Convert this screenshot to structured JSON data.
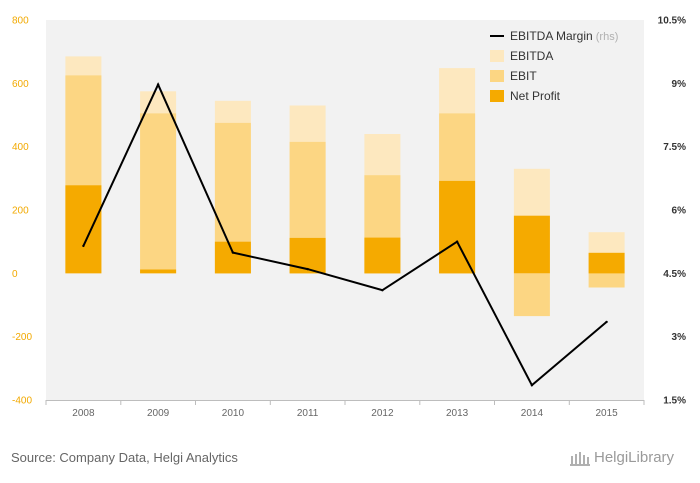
{
  "chart_data": {
    "type": "bar",
    "categories": [
      "2008",
      "2009",
      "2010",
      "2011",
      "2012",
      "2013",
      "2014",
      "2015"
    ],
    "series": [
      {
        "name": "EBITDA",
        "type": "bar",
        "axis": "left",
        "color": "#fde8bf",
        "values": [
          685,
          575,
          545,
          530,
          440,
          648,
          330,
          130
        ]
      },
      {
        "name": "EBIT",
        "type": "bar",
        "axis": "left",
        "color": "#fcd683",
        "values": [
          625,
          505,
          475,
          415,
          310,
          505,
          -135,
          -45
        ]
      },
      {
        "name": "Net Profit",
        "type": "bar",
        "axis": "left",
        "color": "#f5aa00",
        "values": [
          278,
          12,
          100,
          112,
          113,
          292,
          182,
          65
        ]
      },
      {
        "name": "EBITDA Margin",
        "type": "line",
        "axis": "right",
        "color": "#000000",
        "values": [
          5.15,
          8.97,
          4.99,
          4.6,
          4.1,
          5.25,
          1.85,
          3.35
        ]
      }
    ],
    "left_axis": {
      "min": -400,
      "max": 800,
      "ticks": [
        "800",
        "600",
        "400",
        "200",
        "0",
        "-200",
        "-400"
      ],
      "tick_values": [
        800,
        600,
        400,
        200,
        0,
        -200,
        -400
      ]
    },
    "right_axis": {
      "min": 1.5,
      "max": 10.5,
      "ticks": [
        "10.5%",
        "9%",
        "7.5%",
        "6%",
        "4.5%",
        "3%",
        "1.5%"
      ],
      "tick_values": [
        10.5,
        9,
        7.5,
        6,
        4.5,
        3,
        1.5
      ]
    },
    "legend": {
      "placement": "top-right",
      "rhs_suffix": "(rhs)"
    },
    "grid": false
  },
  "footer": {
    "source": "Source: Company Data, Helgi Analytics",
    "logo": "HelgiLibrary"
  }
}
